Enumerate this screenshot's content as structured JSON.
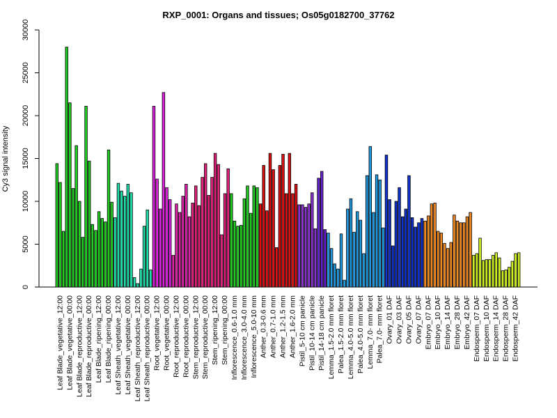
{
  "chart_data": {
    "type": "bar",
    "title": "RXP_0001: Organs and tissues; Os05g0182700_37762",
    "xlabel": "",
    "ylabel": "Cy3 signal intensity",
    "ylim": [
      0,
      30000
    ],
    "yticks": [
      0,
      5000,
      10000,
      15000,
      20000,
      25000,
      30000
    ],
    "grid": false,
    "legend": "none",
    "groups": [
      {
        "label": "Leaf Blade_vegetative_12:00",
        "color": "#22cc22",
        "values": [
          14400,
          12200,
          6500
        ]
      },
      {
        "label": "Leaf Blade_vegetative_00:00",
        "color": "#22cc22",
        "values": [
          28000,
          21500,
          11500
        ]
      },
      {
        "label": "Leaf Blade_reproductive_12:00",
        "color": "#22cc22",
        "values": [
          16500,
          10000,
          5800
        ]
      },
      {
        "label": "Leaf Blade_reproductive_00:00",
        "color": "#22cc22",
        "values": [
          21100,
          14700,
          7300
        ]
      },
      {
        "label": "Leaf Blade_ripening_12:00",
        "color": "#22cc22",
        "values": [
          6600,
          8800,
          8000
        ]
      },
      {
        "label": "Leaf Blade_ripening_00:00",
        "color": "#22cc22",
        "values": [
          7600,
          16000,
          9900
        ]
      },
      {
        "label": "Leaf Sheath_vegetative_12:00",
        "color": "#20ddaa",
        "values": [
          8100,
          12100,
          11200
        ]
      },
      {
        "label": "Leaf Sheath_vegetative_00:00",
        "color": "#20ddaa",
        "values": [
          10600,
          12000,
          11000
        ]
      },
      {
        "label": "Leaf Sheath_reproductive_12:00",
        "color": "#20ddaa",
        "values": [
          1100,
          400,
          2100
        ]
      },
      {
        "label": "Leaf Sheath_reproductive_00:00",
        "color": "#20ddaa",
        "values": [
          7100,
          9000,
          2000
        ]
      },
      {
        "label": "Root_vegetative_12:00",
        "color": "#dd22dd",
        "values": [
          21100,
          12600,
          9100
        ]
      },
      {
        "label": "Root_vegetative_00:00",
        "color": "#dd22dd",
        "values": [
          22700,
          11600,
          10200
        ]
      },
      {
        "label": "Root_reproductive_12:00",
        "color": "#dd22aa",
        "values": [
          3700,
          9700,
          8700
        ]
      },
      {
        "label": "Root_reproductive_00:00",
        "color": "#dd22aa",
        "values": [
          10600,
          12000,
          8200
        ]
      },
      {
        "label": "Stem_reproductive_12:00",
        "color": "#e0207a",
        "values": [
          9800,
          11800,
          9500
        ]
      },
      {
        "label": "Stem_reproductive_00:00",
        "color": "#e0207a",
        "values": [
          12800,
          14400,
          10700
        ]
      },
      {
        "label": "Stem_ripening_12:00",
        "color": "#e0207a",
        "values": [
          12800,
          15600,
          14300
        ]
      },
      {
        "label": "Stem_ripening_00:00",
        "color": "#e0207a",
        "values": [
          6100,
          10900,
          13800
        ]
      },
      {
        "label": "Inflorescence_0.6-1.0 mm",
        "color": "#22cc22",
        "values": [
          10900,
          7700,
          7100
        ]
      },
      {
        "label": "Inflorescence_3.0-4.0 mm",
        "color": "#22cc22",
        "values": [
          7200,
          10300,
          11800
        ]
      },
      {
        "label": "Inflorescence_5.0-10 mm",
        "color": "#22cc22",
        "values": [
          8600,
          11800,
          11600
        ]
      },
      {
        "label": "Anther_0.3-0.6 mm",
        "color": "#dd1111",
        "values": [
          9700,
          14200,
          8900
        ]
      },
      {
        "label": "Anther_0.7-1.0 mm",
        "color": "#dd1111",
        "values": [
          15600,
          13700,
          4600
        ]
      },
      {
        "label": "Anther_1.2-1.5 mm",
        "color": "#dd1111",
        "values": [
          14200,
          15500,
          10900
        ]
      },
      {
        "label": "Anther_1.6-2.0 mm",
        "color": "#dd1111",
        "values": [
          15600,
          10900,
          12000
        ]
      },
      {
        "label": "Pistil_5-10 cm panicle",
        "color": "#8833cc",
        "values": [
          9600,
          9600,
          9300
        ]
      },
      {
        "label": "Pistil_10-14 cm panicle",
        "color": "#8833cc",
        "values": [
          9700,
          11000,
          6800
        ]
      },
      {
        "label": "Pistil_14-18 cm panicle",
        "color": "#6622cc",
        "values": [
          12700,
          13500,
          6700
        ]
      },
      {
        "label": "Lemma_1.5-2.0 mm floret",
        "color": "#2299dd",
        "values": [
          6300,
          4500,
          2700
        ]
      },
      {
        "label": "Palea_1.5-2.0 mm floret",
        "color": "#2299dd",
        "values": [
          2100,
          6200,
          800
        ]
      },
      {
        "label": "Lemma_4.0-5.0 mm floret",
        "color": "#2299dd",
        "values": [
          9100,
          10300,
          6400
        ]
      },
      {
        "label": "Palea_4.0-5.0 mm floret",
        "color": "#2299dd",
        "values": [
          8800,
          7800,
          3900
        ]
      },
      {
        "label": "Lemma_7.0- mm floret",
        "color": "#2299dd",
        "values": [
          13000,
          16400,
          8700
        ]
      },
      {
        "label": "Palea_7.0- mm floret",
        "color": "#2299dd",
        "values": [
          13100,
          12500,
          6900
        ]
      },
      {
        "label": "Ovary_01 DAF",
        "color": "#1133cc",
        "values": [
          15400,
          10200,
          4800
        ]
      },
      {
        "label": "Ovary_03 DAF",
        "color": "#1133cc",
        "values": [
          10000,
          11600,
          8200
        ]
      },
      {
        "label": "Ovary_05 DAF",
        "color": "#1133cc",
        "values": [
          9100,
          13000,
          8100
        ]
      },
      {
        "label": "Ovary_07 DAF",
        "color": "#1133cc",
        "values": [
          7000,
          7500,
          8000
        ]
      },
      {
        "label": "Embryo_07 DAF",
        "color": "#ee8822",
        "values": [
          7700,
          8300,
          9700
        ]
      },
      {
        "label": "Embryo_10 DAF",
        "color": "#ee8822",
        "values": [
          9800,
          6500,
          6300
        ]
      },
      {
        "label": "Embryo_14 DAF",
        "color": "#ee8822",
        "values": [
          5100,
          4500,
          5200
        ]
      },
      {
        "label": "Embryo_28 DAF",
        "color": "#ee8822",
        "values": [
          8400,
          7700,
          7500
        ]
      },
      {
        "label": "Embryo_42 DAF",
        "color": "#ee8822",
        "values": [
          7500,
          8200,
          8700
        ]
      },
      {
        "label": "Endosperm_07 DAF",
        "color": "#ccee22",
        "values": [
          3700,
          3900,
          5700
        ]
      },
      {
        "label": "Endosperm_10 DAF",
        "color": "#ccee22",
        "values": [
          3100,
          3200,
          3200
        ]
      },
      {
        "label": "Endosperm_14 DAF",
        "color": "#ccee22",
        "values": [
          3700,
          4000,
          3400
        ]
      },
      {
        "label": "Endosperm_28 DAF",
        "color": "#ccee22",
        "values": [
          1900,
          2000,
          2300
        ]
      },
      {
        "label": "Endosperm_42 DAF",
        "color": "#ccee22",
        "values": [
          3000,
          3900,
          4000
        ]
      }
    ]
  }
}
